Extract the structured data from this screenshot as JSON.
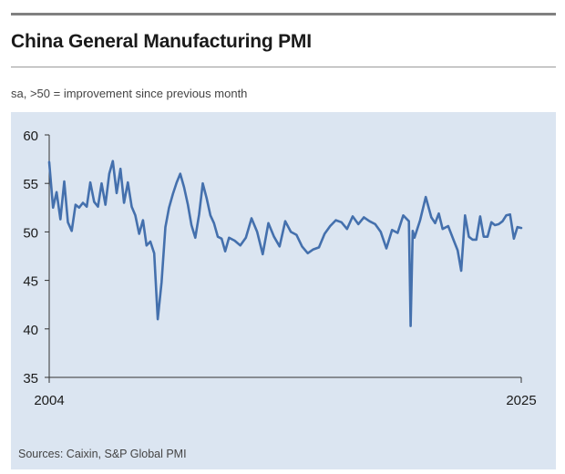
{
  "header": {
    "title": "China General Manufacturing PMI",
    "subtitle": "sa, >50 = improvement since previous month"
  },
  "footer": {
    "source": "Sources: Caixin, S&P Global PMI"
  },
  "colors": {
    "line": "#4470ad",
    "panel": "#dbe5f1",
    "axis": "#333333"
  },
  "chart_data": {
    "type": "line",
    "title": "China General Manufacturing PMI",
    "subtitle": "sa, >50 = improvement since previous month",
    "xlabel": "",
    "ylabel": "",
    "ylim": [
      35,
      60
    ],
    "xlim": [
      2004,
      2025
    ],
    "yticks": [
      60,
      55,
      50,
      45,
      40,
      35
    ],
    "xtick_labels": [
      "2004",
      "2025"
    ],
    "grid": false,
    "series": [
      {
        "name": "China General Manufacturing PMI",
        "x": [
          2004.0,
          2004.17,
          2004.33,
          2004.5,
          2004.67,
          2004.83,
          2005.0,
          2005.17,
          2005.33,
          2005.5,
          2005.67,
          2005.83,
          2006.0,
          2006.17,
          2006.33,
          2006.5,
          2006.67,
          2006.83,
          2007.0,
          2007.17,
          2007.33,
          2007.5,
          2007.67,
          2007.83,
          2008.0,
          2008.17,
          2008.33,
          2008.5,
          2008.67,
          2008.83,
          2009.0,
          2009.17,
          2009.33,
          2009.5,
          2009.67,
          2009.83,
          2010.0,
          2010.17,
          2010.33,
          2010.5,
          2010.67,
          2010.83,
          2011.0,
          2011.17,
          2011.33,
          2011.5,
          2011.67,
          2011.83,
          2012.0,
          2012.25,
          2012.5,
          2012.75,
          2013.0,
          2013.25,
          2013.5,
          2013.75,
          2014.0,
          2014.25,
          2014.5,
          2014.75,
          2015.0,
          2015.25,
          2015.5,
          2015.75,
          2016.0,
          2016.25,
          2016.5,
          2016.75,
          2017.0,
          2017.25,
          2017.5,
          2017.75,
          2018.0,
          2018.25,
          2018.5,
          2018.75,
          2019.0,
          2019.25,
          2019.5,
          2019.75,
          2020.0,
          2020.08,
          2020.17,
          2020.25,
          2020.5,
          2020.75,
          2021.0,
          2021.17,
          2021.33,
          2021.5,
          2021.75,
          2022.0,
          2022.17,
          2022.33,
          2022.5,
          2022.67,
          2022.83,
          2023.0,
          2023.17,
          2023.33,
          2023.5,
          2023.67,
          2023.83,
          2024.0,
          2024.17,
          2024.33,
          2024.5,
          2024.67,
          2024.83,
          2025.0
        ],
        "values": [
          57.2,
          52.5,
          54.1,
          51.3,
          55.2,
          51.0,
          50.1,
          52.8,
          52.5,
          53.0,
          52.6,
          55.1,
          53.1,
          52.6,
          55.0,
          52.8,
          56.0,
          57.3,
          54.0,
          56.5,
          53.0,
          55.1,
          52.6,
          51.7,
          49.8,
          51.2,
          48.6,
          49.0,
          47.8,
          41.0,
          44.8,
          50.5,
          52.5,
          53.9,
          55.1,
          56.0,
          54.6,
          52.8,
          50.7,
          49.4,
          51.8,
          55.0,
          53.5,
          51.7,
          50.9,
          49.5,
          49.3,
          48.0,
          49.4,
          49.1,
          48.6,
          49.4,
          51.4,
          50.0,
          47.7,
          50.9,
          49.5,
          48.5,
          51.1,
          50.0,
          49.7,
          48.5,
          47.8,
          48.2,
          48.4,
          49.8,
          50.6,
          51.2,
          51.0,
          50.3,
          51.6,
          50.8,
          51.5,
          51.1,
          50.8,
          50.0,
          48.3,
          50.2,
          49.9,
          51.7,
          51.1,
          40.3,
          50.1,
          49.4,
          51.2,
          53.6,
          51.5,
          50.9,
          51.9,
          50.3,
          50.6,
          49.1,
          48.1,
          46.0,
          51.7,
          49.5,
          49.2,
          49.2,
          51.6,
          49.5,
          49.5,
          51.0,
          50.7,
          50.8,
          51.1,
          51.7,
          51.8,
          49.3,
          50.5,
          50.4
        ]
      }
    ]
  }
}
